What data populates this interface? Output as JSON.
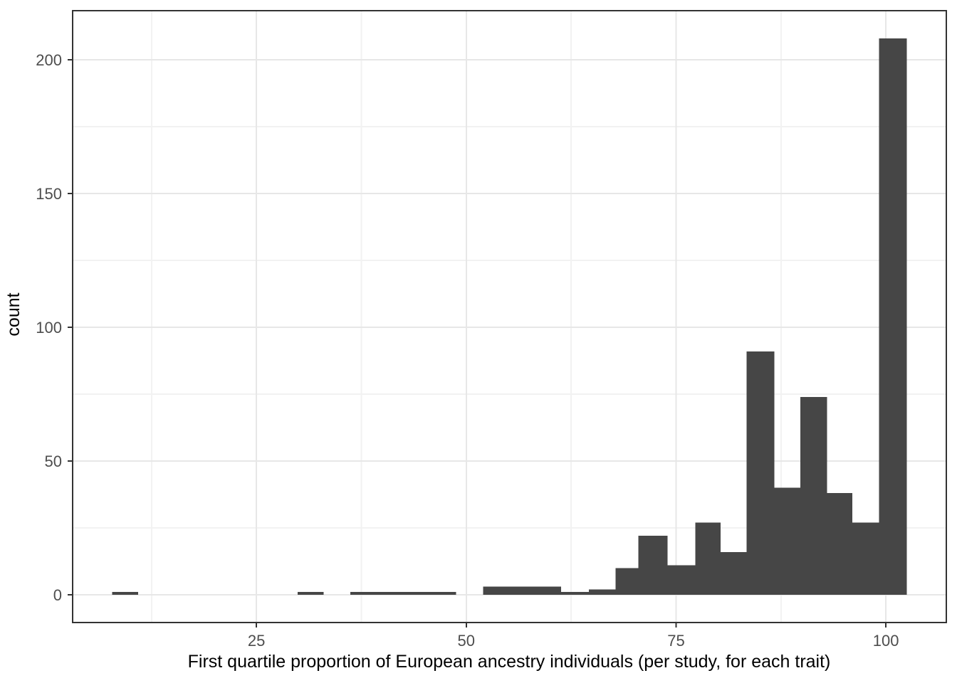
{
  "chart_data": {
    "type": "bar",
    "subtype": "histogram",
    "title": "",
    "xlabel": "First quartile proportion of European ancestry individuals (per study, for each trait)",
    "ylabel": "count",
    "x_ticks": [
      25,
      50,
      75,
      100
    ],
    "y_ticks": [
      0,
      50,
      100,
      150,
      200
    ],
    "x_minor_ticks": [
      12.5,
      37.5,
      62.5,
      87.5
    ],
    "y_minor_ticks": [
      25,
      75,
      125,
      175
    ],
    "xlim": [
      3.1,
      107.2
    ],
    "ylim": [
      -10.4,
      218.4
    ],
    "grid": "major-and-minor",
    "legend": "none",
    "bins": [
      {
        "x0": 7.8,
        "x1": 10.9,
        "count": 1
      },
      {
        "x0": 29.9,
        "x1": 33.0,
        "count": 1
      },
      {
        "x0": 36.2,
        "x1": 39.3,
        "count": 1
      },
      {
        "x0": 39.3,
        "x1": 42.5,
        "count": 1
      },
      {
        "x0": 42.5,
        "x1": 45.7,
        "count": 1
      },
      {
        "x0": 45.7,
        "x1": 48.8,
        "count": 1
      },
      {
        "x0": 52.0,
        "x1": 55.1,
        "count": 3
      },
      {
        "x0": 55.1,
        "x1": 58.2,
        "count": 3
      },
      {
        "x0": 58.2,
        "x1": 61.3,
        "count": 3
      },
      {
        "x0": 61.3,
        "x1": 64.6,
        "count": 1
      },
      {
        "x0": 64.6,
        "x1": 67.8,
        "count": 2
      },
      {
        "x0": 67.8,
        "x1": 70.5,
        "count": 10
      },
      {
        "x0": 70.5,
        "x1": 74.0,
        "count": 22
      },
      {
        "x0": 74.0,
        "x1": 77.3,
        "count": 11
      },
      {
        "x0": 77.3,
        "x1": 80.3,
        "count": 27
      },
      {
        "x0": 80.3,
        "x1": 83.4,
        "count": 16
      },
      {
        "x0": 83.4,
        "x1": 86.7,
        "count": 91
      },
      {
        "x0": 86.7,
        "x1": 89.8,
        "count": 40
      },
      {
        "x0": 89.8,
        "x1": 93.0,
        "count": 74
      },
      {
        "x0": 93.0,
        "x1": 96.0,
        "count": 38
      },
      {
        "x0": 96.0,
        "x1": 99.2,
        "count": 27
      },
      {
        "x0": 99.2,
        "x1": 102.5,
        "count": 208
      }
    ],
    "colors": {
      "bar_fill": "#464646",
      "grid_major": "#e7e7e7",
      "grid_minor": "#f2f2f2",
      "panel_border": "#333333",
      "tick_mark": "#333333",
      "tick_label": "#4d4d4d",
      "axis_title": "#000000",
      "background": "#ffffff"
    }
  }
}
